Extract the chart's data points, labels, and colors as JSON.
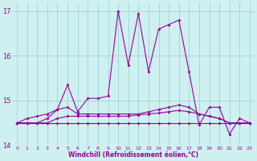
{
  "xlabel": "Windchill (Refroidissement éolien,°C)",
  "background_color": "#cff0f0",
  "grid_color": "#99cccc",
  "line_color": "#990099",
  "xlim": [
    -0.5,
    23.5
  ],
  "ylim": [
    14.0,
    17.2
  ],
  "yticks": [
    14,
    15,
    16,
    17
  ],
  "xticks": [
    0,
    1,
    2,
    3,
    4,
    5,
    6,
    7,
    8,
    9,
    10,
    11,
    12,
    13,
    14,
    15,
    16,
    17,
    18,
    19,
    20,
    21,
    22,
    23
  ],
  "series": [
    [
      14.5,
      14.6,
      14.65,
      14.7,
      14.8,
      15.35,
      14.75,
      15.05,
      15.05,
      15.1,
      17.0,
      15.8,
      16.95,
      15.65,
      16.6,
      16.7,
      16.8,
      15.65,
      14.45,
      14.85,
      14.85,
      14.25,
      14.6,
      14.5
    ],
    [
      14.5,
      14.5,
      14.5,
      14.6,
      14.8,
      14.85,
      14.7,
      14.7,
      14.7,
      14.7,
      14.7,
      14.7,
      14.7,
      14.75,
      14.8,
      14.85,
      14.9,
      14.85,
      14.7,
      14.65,
      14.6,
      14.5,
      14.5,
      14.5
    ],
    [
      14.5,
      14.5,
      14.5,
      14.5,
      14.6,
      14.65,
      14.65,
      14.65,
      14.65,
      14.65,
      14.65,
      14.65,
      14.68,
      14.7,
      14.72,
      14.75,
      14.78,
      14.75,
      14.7,
      14.65,
      14.6,
      14.5,
      14.5,
      14.5
    ],
    [
      14.5,
      14.5,
      14.5,
      14.5,
      14.5,
      14.5,
      14.5,
      14.5,
      14.5,
      14.5,
      14.5,
      14.5,
      14.5,
      14.5,
      14.5,
      14.5,
      14.5,
      14.5,
      14.5,
      14.5,
      14.5,
      14.5,
      14.5,
      14.5
    ]
  ]
}
